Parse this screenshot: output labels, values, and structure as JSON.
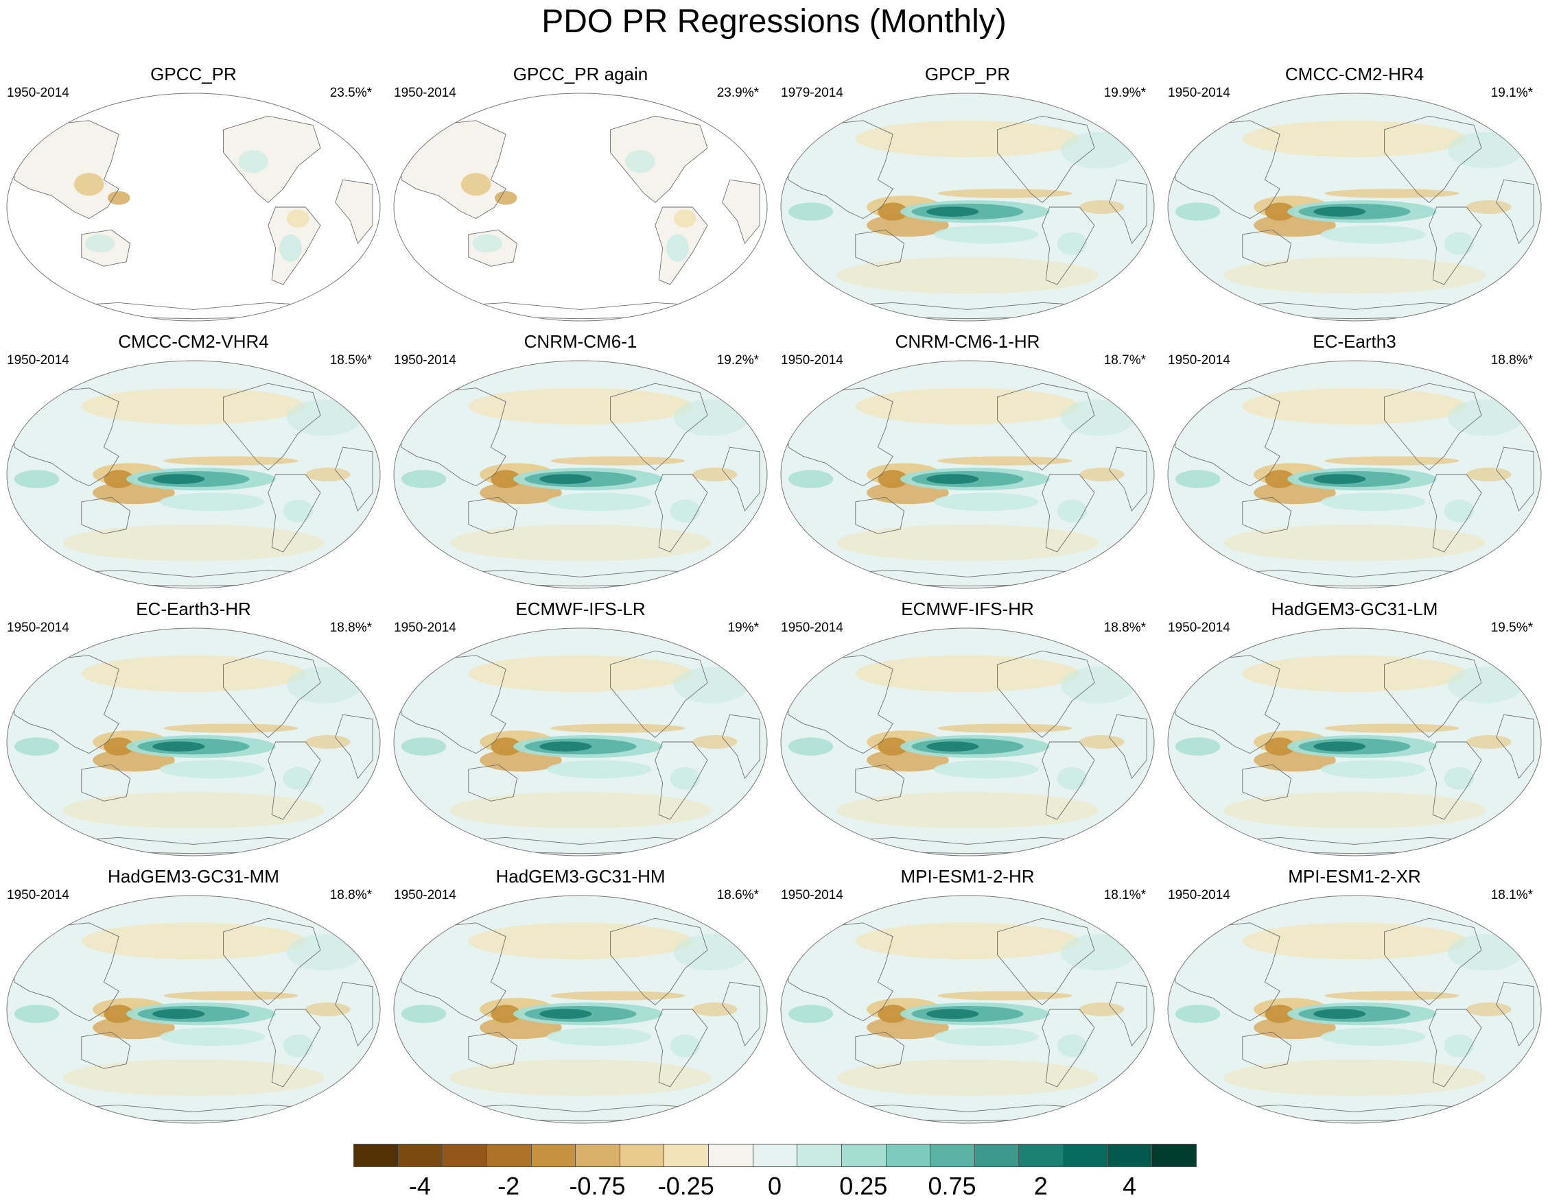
{
  "title": "PDO PR Regressions (Monthly)",
  "panels": [
    {
      "name": "GPCC_PR",
      "years": "1950-2014",
      "pct": "23.5%*",
      "dataset": "land"
    },
    {
      "name": "GPCC_PR again",
      "years": "1950-2014",
      "pct": "23.9%*",
      "dataset": "land"
    },
    {
      "name": "GPCP_PR",
      "years": "1979-2014",
      "pct": "19.9%*",
      "dataset": "global"
    },
    {
      "name": "CMCC-CM2-HR4",
      "years": "1950-2014",
      "pct": "19.1%*",
      "dataset": "global"
    },
    {
      "name": "CMCC-CM2-VHR4",
      "years": "1950-2014",
      "pct": "18.5%*",
      "dataset": "global"
    },
    {
      "name": "CNRM-CM6-1",
      "years": "1950-2014",
      "pct": "19.2%*",
      "dataset": "global"
    },
    {
      "name": "CNRM-CM6-1-HR",
      "years": "1950-2014",
      "pct": "18.7%*",
      "dataset": "global"
    },
    {
      "name": "EC-Earth3",
      "years": "1950-2014",
      "pct": "18.8%*",
      "dataset": "global"
    },
    {
      "name": "EC-Earth3-HR",
      "years": "1950-2014",
      "pct": "18.8%*",
      "dataset": "global"
    },
    {
      "name": "ECMWF-IFS-LR",
      "years": "1950-2014",
      "pct": "19%*",
      "dataset": "global"
    },
    {
      "name": "ECMWF-IFS-HR",
      "years": "1950-2014",
      "pct": "18.8%*",
      "dataset": "global"
    },
    {
      "name": "HadGEM3-GC31-LM",
      "years": "1950-2014",
      "pct": "19.5%*",
      "dataset": "global"
    },
    {
      "name": "HadGEM3-GC31-MM",
      "years": "1950-2014",
      "pct": "18.8%*",
      "dataset": "global"
    },
    {
      "name": "HadGEM3-GC31-HM",
      "years": "1950-2014",
      "pct": "18.6%*",
      "dataset": "global"
    },
    {
      "name": "MPI-ESM1-2-HR",
      "years": "1950-2014",
      "pct": "18.1%*",
      "dataset": "global"
    },
    {
      "name": "MPI-ESM1-2-XR",
      "years": "1950-2014",
      "pct": "18.1%*",
      "dataset": "global"
    }
  ],
  "colorbar": {
    "colors": [
      "#543005",
      "#7a4a0f",
      "#94561a",
      "#ad7127",
      "#c7923d",
      "#d8b06a",
      "#e7cb8f",
      "#f2e3b8",
      "#f6f3ec",
      "#e6f3f1",
      "#c9ebe4",
      "#a6ddd3",
      "#7ecabd",
      "#5ab3a5",
      "#3b998c",
      "#1e7f73",
      "#066a5e",
      "#015a4d",
      "#003c30"
    ],
    "labels": [
      "-4",
      "-2",
      "-0.75",
      "-0.25",
      "0",
      "0.25",
      "0.75",
      "2",
      "4"
    ]
  }
}
